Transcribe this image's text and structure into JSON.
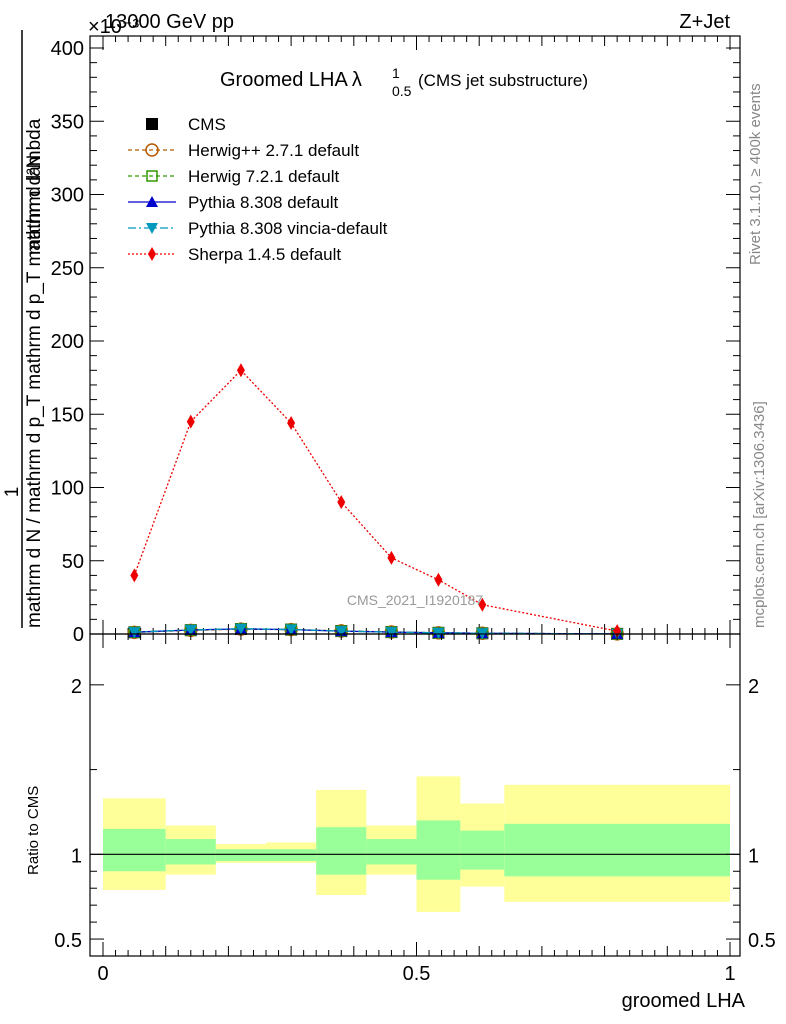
{
  "header": {
    "energy_label": "13000 GeV pp",
    "process_label": "Z+Jet",
    "exponent_label": "×10⁻³"
  },
  "side_labels": {
    "rivet": "Rivet 3.1.10, ≥ 400k events",
    "mcplots": "mcplots.cern.ch [arXiv:1306.3436]"
  },
  "chart_data": {
    "type": "line",
    "title_main": "Groomed LHA",
    "title_symbol": "λ",
    "title_sup": "1",
    "title_sub": "0.5",
    "title_note": "(CMS jet substructure)",
    "watermark": "CMS_2021_I1920187",
    "xlabel": "groomed LHA",
    "ylabel_numerator": "1",
    "ylabel_denominator": "mathrm d N / mathrm d p_T mathrm d p_T mathrm d lambda",
    "ylabel_line1": "mathrm d²N",
    "ylabel_line2": "mathrm d N / mathrm d p_T mathrm d p_T mathrm d lambda",
    "ylim": [
      0,
      400
    ],
    "yticks": [
      0,
      50,
      100,
      150,
      200,
      250,
      300,
      350,
      400
    ],
    "ytick_labels": [
      "0",
      "50",
      "100",
      "150",
      "200",
      "250",
      "300",
      "350",
      "400"
    ],
    "xlim": [
      0,
      1
    ],
    "xticks": [
      0,
      0.5,
      1
    ],
    "xtick_labels": [
      "0",
      "0.5",
      "1"
    ],
    "bin_edges": [
      0,
      0.1,
      0.18,
      0.26,
      0.34,
      0.42,
      0.5,
      0.57,
      0.64,
      1.0
    ],
    "x": [
      0.05,
      0.14,
      0.22,
      0.3,
      0.38,
      0.46,
      0.535,
      0.605,
      0.82
    ],
    "legend": [
      "CMS",
      "Herwig++ 2.7.1 default",
      "Herwig 7.2.1 default",
      "Pythia 8.308 default",
      "Pythia 8.308 vincia-default",
      "Sherpa 1.4.5 default"
    ],
    "series": [
      {
        "name": "CMS",
        "color": "#000000",
        "marker": "square",
        "values": [
          1.2,
          2.6,
          3.4,
          3.0,
          2.0,
          1.3,
          0.8,
          0.5,
          0.1
        ],
        "dash": ""
      },
      {
        "name": "Herwig++ 2.7.1 default",
        "color": "#b35900",
        "marker": "circle-open",
        "values": [
          1.1,
          2.5,
          3.3,
          3.0,
          2.1,
          1.4,
          0.8,
          0.5,
          0.1
        ],
        "dash": "4,3"
      },
      {
        "name": "Herwig 7.2.1 default",
        "color": "#339900",
        "marker": "square-open",
        "values": [
          1.2,
          2.7,
          3.5,
          3.1,
          2.0,
          1.3,
          0.8,
          0.5,
          0.1
        ],
        "dash": "4,3"
      },
      {
        "name": "Pythia 8.308 default",
        "color": "#0000cc",
        "marker": "triangle-up",
        "values": [
          1.2,
          2.7,
          3.5,
          3.0,
          2.0,
          1.3,
          0.8,
          0.5,
          0.1
        ],
        "dash": ""
      },
      {
        "name": "Pythia 8.308 vincia-default",
        "color": "#0099bb",
        "marker": "triangle-down",
        "values": [
          1.3,
          2.8,
          3.6,
          3.1,
          2.0,
          1.3,
          0.8,
          0.5,
          0.1
        ],
        "dash": "8,3,2,3"
      },
      {
        "name": "Sherpa 1.4.5 default",
        "color": "#ee0000",
        "marker": "diamond",
        "values": [
          40,
          145,
          180,
          144,
          90,
          52,
          37,
          20,
          2
        ],
        "errors": [
          2,
          3,
          4,
          3,
          2,
          2,
          1.5,
          1,
          0.5
        ],
        "dash": "2,2"
      }
    ],
    "ratio": {
      "ylabel": "Ratio to CMS",
      "ylim": [
        0.4,
        2.3
      ],
      "yticks": [
        0.5,
        1,
        2
      ],
      "ytick_labels": [
        "0.5",
        "1",
        "2"
      ],
      "inner_band": [
        [
          0.9,
          1.15
        ],
        [
          0.94,
          1.09
        ],
        [
          0.96,
          1.03
        ],
        [
          0.96,
          1.03
        ],
        [
          0.88,
          1.16
        ],
        [
          0.94,
          1.09
        ],
        [
          0.85,
          1.2
        ],
        [
          0.91,
          1.14
        ],
        [
          0.87,
          1.18
        ]
      ],
      "outer_band": [
        [
          0.79,
          1.33
        ],
        [
          0.88,
          1.17
        ],
        [
          0.95,
          1.06
        ],
        [
          0.95,
          1.07
        ],
        [
          0.76,
          1.38
        ],
        [
          0.88,
          1.17
        ],
        [
          0.66,
          1.46
        ],
        [
          0.81,
          1.3
        ],
        [
          0.72,
          1.41
        ]
      ],
      "inner_color": "#99ff99",
      "outer_color": "#ffff99"
    }
  }
}
